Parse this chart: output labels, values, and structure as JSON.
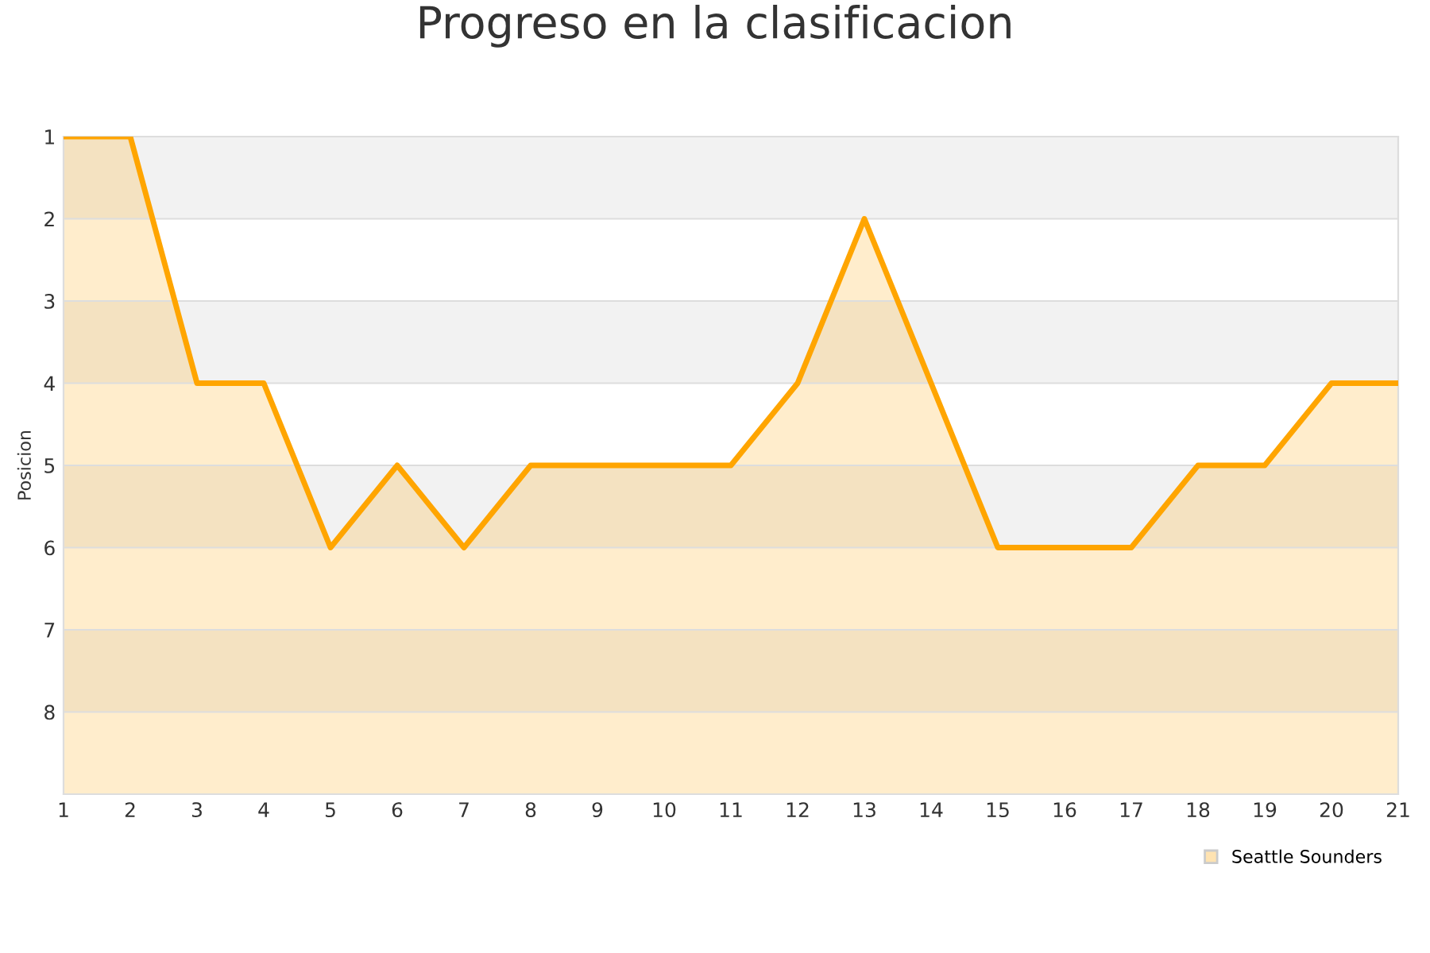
{
  "chart_data": {
    "type": "area",
    "title": "Progreso en la clasificacion",
    "ylabel": "Posicion",
    "x": [
      1,
      2,
      3,
      4,
      5,
      6,
      7,
      8,
      9,
      10,
      11,
      12,
      13,
      14,
      15,
      16,
      17,
      18,
      19,
      20,
      21
    ],
    "series": [
      {
        "name": "Seattle Sounders",
        "color": "#ffa500",
        "values": [
          1,
          1,
          4,
          4,
          6,
          5,
          6,
          5,
          5,
          5,
          5,
          4,
          2,
          4,
          6,
          6,
          6,
          5,
          5,
          4,
          4
        ]
      }
    ],
    "xlim": [
      1,
      21
    ],
    "xticks": [
      1,
      2,
      3,
      4,
      5,
      6,
      7,
      8,
      9,
      10,
      11,
      12,
      13,
      14,
      15,
      16,
      17,
      18,
      19,
      20,
      21
    ],
    "ylim": [
      9,
      1
    ],
    "yticks": [
      1,
      2,
      3,
      4,
      5,
      6,
      7,
      8
    ],
    "bands": [
      {
        "axis": "y",
        "from": 1,
        "to": 2,
        "color": "#f2f2f2"
      },
      {
        "axis": "y",
        "from": 3,
        "to": 4,
        "color": "#f2f2f2"
      },
      {
        "axis": "y",
        "from": 5,
        "to": 6,
        "color": "#f2f2f2"
      },
      {
        "axis": "y",
        "from": 7,
        "to": 8,
        "color": "#f2f2f2"
      }
    ],
    "grid": "y",
    "legend": "bottom right"
  }
}
